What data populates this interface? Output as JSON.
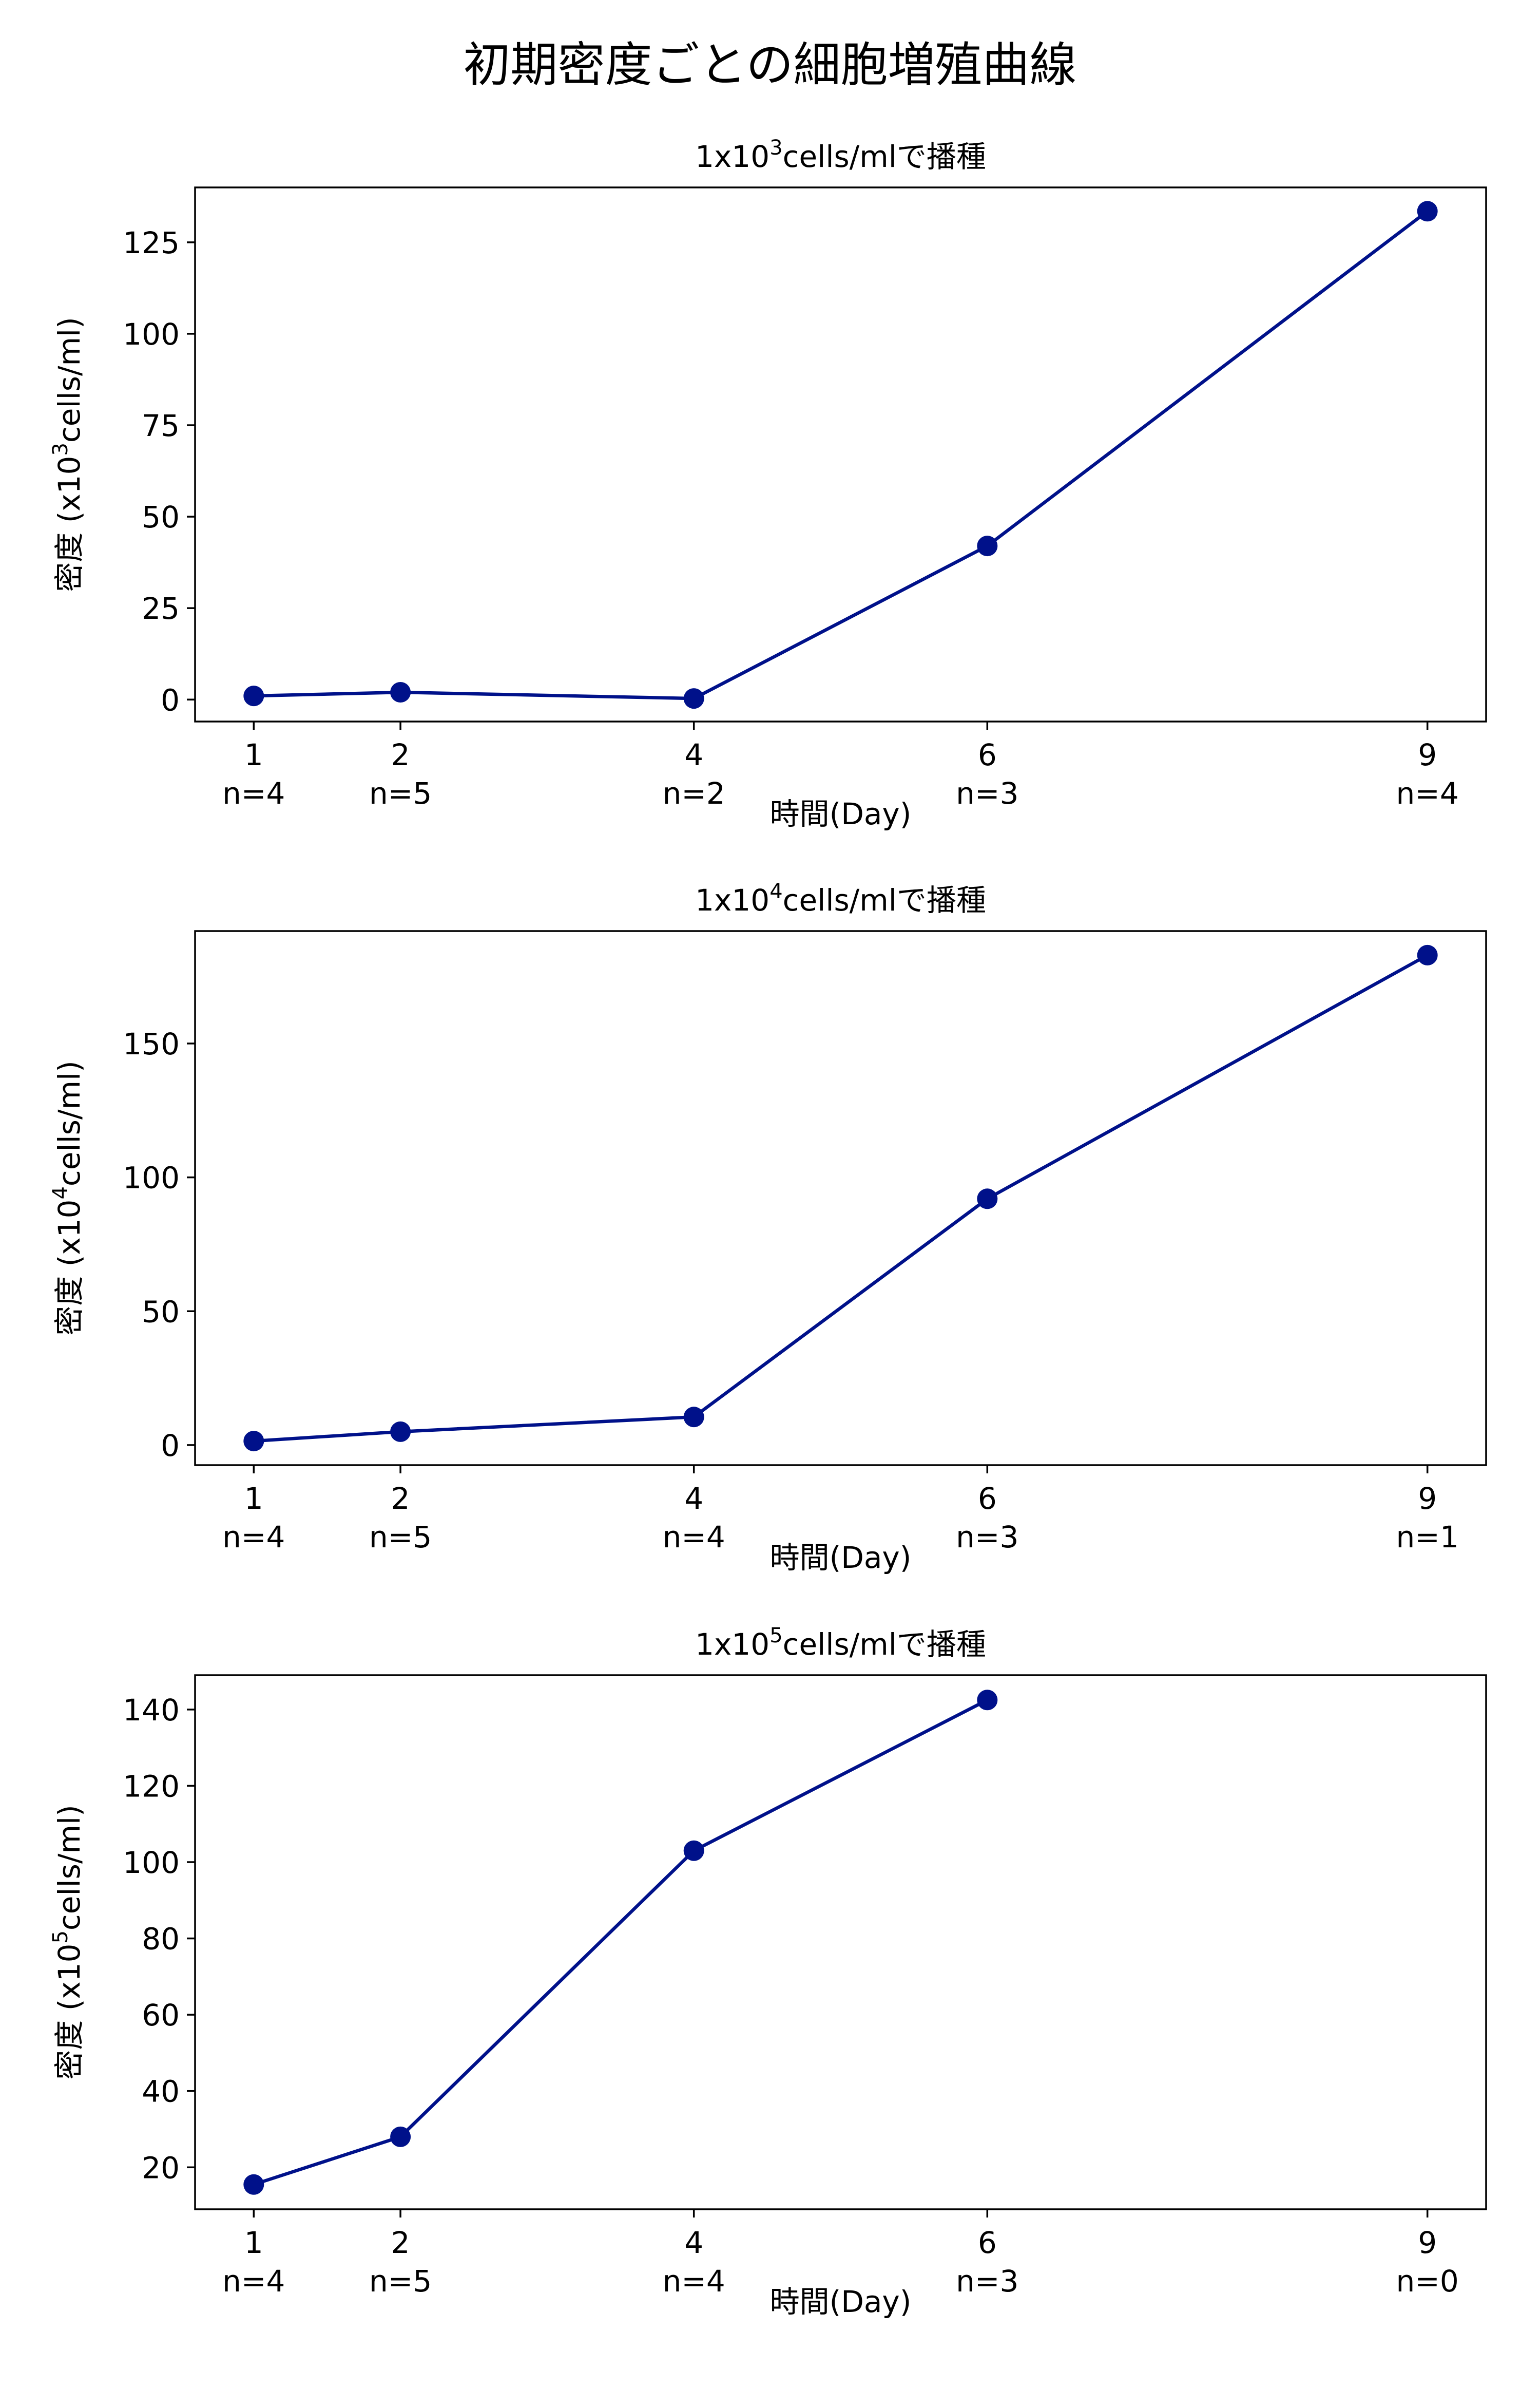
{
  "figure_title": "初期密度ごとの細胞増殖曲線",
  "colors": {
    "series": "#00118a",
    "axes": "#000000",
    "background": "#ffffff"
  },
  "chart_data": [
    {
      "type": "line",
      "title_prefix": "1x10",
      "title_sup": "3",
      "title_suffix": "cells/mlで播種",
      "xlabel": "時間(Day)",
      "ylabel_prefix": "密度 (x10",
      "ylabel_sup": "3",
      "ylabel_suffix": "cells/ml)",
      "x": [
        1,
        2,
        4,
        6,
        9
      ],
      "x_tick_labels": [
        "1",
        "2",
        "4",
        "6",
        "9"
      ],
      "n_labels": [
        "n=4",
        "n=5",
        "n=2",
        "n=3",
        "n=4"
      ],
      "series": [
        {
          "values": [
            1,
            2,
            0.3,
            42,
            133.5
          ]
        }
      ],
      "yticks": [
        0,
        25,
        50,
        75,
        100,
        125
      ],
      "xlim": [
        0.6,
        9.4
      ],
      "ylim": [
        -6,
        140
      ],
      "grid": false
    },
    {
      "type": "line",
      "title_prefix": "1x10",
      "title_sup": "4",
      "title_suffix": "cells/mlで播種",
      "xlabel": "時間(Day)",
      "ylabel_prefix": "密度 (x10",
      "ylabel_sup": "4",
      "ylabel_suffix": "cells/ml)",
      "x": [
        1,
        2,
        4,
        6,
        9
      ],
      "x_tick_labels": [
        "1",
        "2",
        "4",
        "6",
        "9"
      ],
      "n_labels": [
        "n=4",
        "n=5",
        "n=4",
        "n=3",
        "n=1"
      ],
      "series": [
        {
          "values": [
            1.5,
            5,
            10.5,
            92,
            183
          ]
        }
      ],
      "yticks": [
        0,
        50,
        100,
        150
      ],
      "xlim": [
        0.6,
        9.4
      ],
      "ylim": [
        -7.5,
        192
      ],
      "grid": false
    },
    {
      "type": "line",
      "title_prefix": "1x10",
      "title_sup": "5",
      "title_suffix": "cells/mlで播種",
      "xlabel": "時間(Day)",
      "ylabel_prefix": "密度 (x10",
      "ylabel_sup": "5",
      "ylabel_suffix": "cells/ml)",
      "x": [
        1,
        2,
        4,
        6
      ],
      "x_tick_labels": [
        "1",
        "2",
        "4",
        "6",
        "9"
      ],
      "x_ticks": [
        1,
        2,
        4,
        6,
        9
      ],
      "n_labels": [
        "n=4",
        "n=5",
        "n=4",
        "n=3",
        "n=0"
      ],
      "series": [
        {
          "values": [
            15.5,
            28,
            103,
            142.5
          ]
        }
      ],
      "yticks": [
        20,
        40,
        60,
        80,
        100,
        120,
        140
      ],
      "xlim": [
        0.6,
        9.4
      ],
      "ylim": [
        9,
        149
      ],
      "grid": false
    }
  ]
}
